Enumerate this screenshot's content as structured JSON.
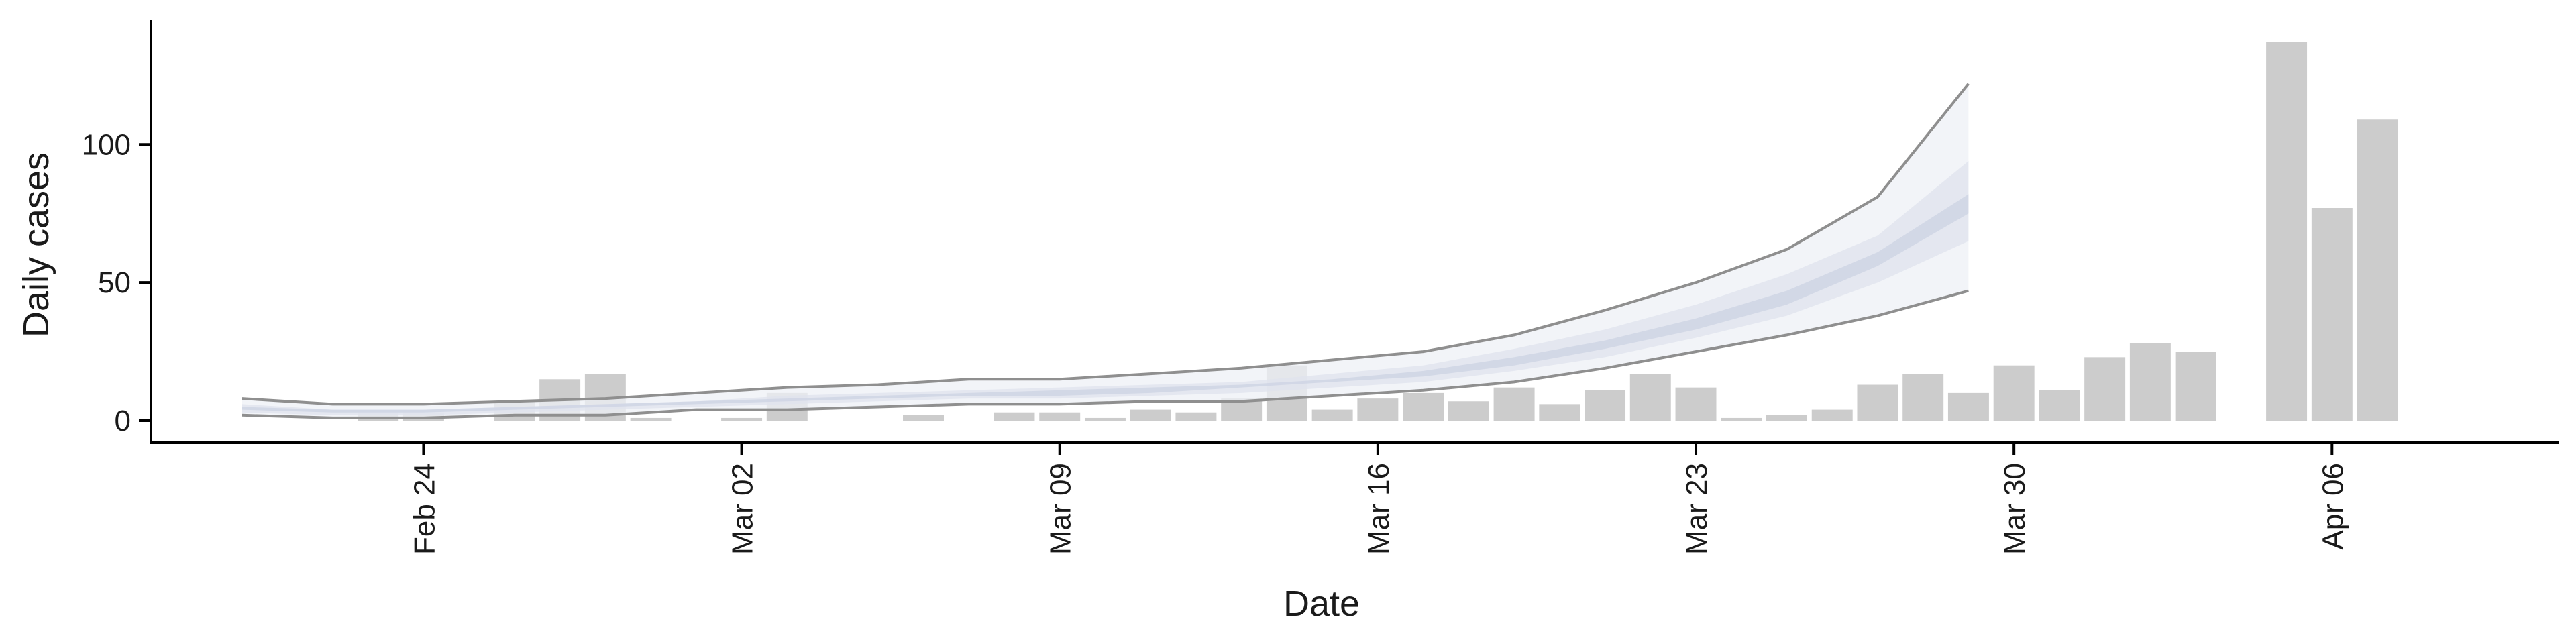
{
  "chart_data": {
    "type": "bar",
    "xlabel": "Date",
    "ylabel": "Daily cases",
    "y_ticks": [
      0,
      50,
      100
    ],
    "ylim": [
      -8,
      145
    ],
    "x_ticks": [
      {
        "date": "2020-02-24",
        "label": "Feb 24"
      },
      {
        "date": "2020-03-02",
        "label": "Mar 02"
      },
      {
        "date": "2020-03-09",
        "label": "Mar 09"
      },
      {
        "date": "2020-03-16",
        "label": "Mar 16"
      },
      {
        "date": "2020-03-23",
        "label": "Mar 23"
      },
      {
        "date": "2020-03-30",
        "label": "Mar 30"
      },
      {
        "date": "2020-04-06",
        "label": "Apr 06"
      }
    ],
    "xlim": [
      "2020-02-18",
      "2020-04-11"
    ],
    "grid": false,
    "colors": {
      "bars": "#cccccc",
      "band_90": "#eef0f6",
      "band_50": "#dfe3ee",
      "band_20": "#ccd3e3",
      "outline": "#8f8f8f",
      "axis": "#000000"
    },
    "bars": [
      {
        "date": "2020-02-23",
        "value": 3
      },
      {
        "date": "2020-02-24",
        "value": 3
      },
      {
        "date": "2020-02-26",
        "value": 7
      },
      {
        "date": "2020-02-27",
        "value": 15
      },
      {
        "date": "2020-02-28",
        "value": 17
      },
      {
        "date": "2020-02-29",
        "value": 1
      },
      {
        "date": "2020-03-02",
        "value": 1
      },
      {
        "date": "2020-03-03",
        "value": 10
      },
      {
        "date": "2020-03-06",
        "value": 2
      },
      {
        "date": "2020-03-08",
        "value": 3
      },
      {
        "date": "2020-03-09",
        "value": 3
      },
      {
        "date": "2020-03-10",
        "value": 1
      },
      {
        "date": "2020-03-11",
        "value": 4
      },
      {
        "date": "2020-03-12",
        "value": 3
      },
      {
        "date": "2020-03-13",
        "value": 8
      },
      {
        "date": "2020-03-14",
        "value": 20
      },
      {
        "date": "2020-03-15",
        "value": 4
      },
      {
        "date": "2020-03-16",
        "value": 8
      },
      {
        "date": "2020-03-17",
        "value": 10
      },
      {
        "date": "2020-03-18",
        "value": 7
      },
      {
        "date": "2020-03-19",
        "value": 12
      },
      {
        "date": "2020-03-20",
        "value": 6
      },
      {
        "date": "2020-03-21",
        "value": 11
      },
      {
        "date": "2020-03-22",
        "value": 17
      },
      {
        "date": "2020-03-23",
        "value": 12
      },
      {
        "date": "2020-03-24",
        "value": 1
      },
      {
        "date": "2020-03-25",
        "value": 2
      },
      {
        "date": "2020-03-26",
        "value": 4
      },
      {
        "date": "2020-03-27",
        "value": 13
      },
      {
        "date": "2020-03-28",
        "value": 17
      },
      {
        "date": "2020-03-29",
        "value": 10
      },
      {
        "date": "2020-03-30",
        "value": 20
      },
      {
        "date": "2020-03-31",
        "value": 11
      },
      {
        "date": "2020-04-01",
        "value": 23
      },
      {
        "date": "2020-04-02",
        "value": 28
      },
      {
        "date": "2020-04-03",
        "value": 25
      },
      {
        "date": "2020-04-05",
        "value": 137
      },
      {
        "date": "2020-04-06",
        "value": 77
      },
      {
        "date": "2020-04-07",
        "value": 109
      }
    ],
    "forecast": {
      "dates": [
        "2020-02-20",
        "2020-02-22",
        "2020-02-24",
        "2020-02-26",
        "2020-02-28",
        "2020-03-01",
        "2020-03-03",
        "2020-03-05",
        "2020-03-07",
        "2020-03-09",
        "2020-03-11",
        "2020-03-13",
        "2020-03-15",
        "2020-03-17",
        "2020-03-19",
        "2020-03-21",
        "2020-03-23",
        "2020-03-25",
        "2020-03-27",
        "2020-03-29"
      ],
      "lower_90": [
        2,
        1,
        1,
        2,
        2,
        4,
        4,
        5,
        6,
        6,
        7,
        7,
        9,
        11,
        14,
        19,
        25,
        31,
        38,
        47
      ],
      "upper_90": [
        8,
        6,
        6,
        7,
        8,
        10,
        12,
        13,
        15,
        15,
        17,
        19,
        22,
        25,
        31,
        40,
        50,
        62,
        81,
        122
      ],
      "lower_50": [
        3,
        2,
        2,
        3,
        4,
        5,
        6,
        7,
        8,
        8,
        9,
        10,
        12,
        14,
        18,
        23,
        30,
        38,
        50,
        65
      ],
      "upper_50": [
        6,
        4,
        4,
        5,
        6,
        7,
        9,
        10,
        11,
        12,
        13,
        14,
        17,
        20,
        26,
        33,
        42,
        53,
        67,
        94
      ],
      "lower_20": [
        4,
        3,
        3,
        4,
        5,
        6,
        7,
        8,
        9,
        9,
        10,
        12,
        14,
        16,
        20,
        26,
        33,
        42,
        56,
        75
      ],
      "upper_20": [
        5,
        4,
        4,
        5,
        6,
        7,
        8,
        9,
        10,
        11,
        12,
        13,
        15,
        18,
        23,
        29,
        37,
        47,
        61,
        82
      ]
    }
  }
}
